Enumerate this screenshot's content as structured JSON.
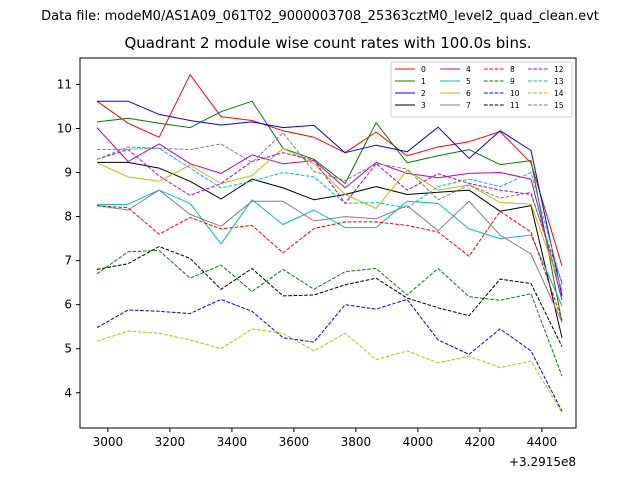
{
  "figure": {
    "suptitle": "Data file: modeM0/AS1A09_061T02_9000003708_25363cztM0_level2_quad_clean.evt",
    "title": "Quadrant 2 module wise count rates with 100.0s bins."
  },
  "chart_data": {
    "type": "line",
    "title": "Quadrant 2 module wise count rates with 100.0s bins.",
    "xlabel": "",
    "ylabel": "",
    "x_offset_label": "+3.2915e8",
    "xlim": [
      2910,
      4510
    ],
    "ylim": [
      3.2,
      11.6
    ],
    "x_ticks": [
      3000,
      3200,
      3400,
      3600,
      3800,
      4000,
      4200,
      4400
    ],
    "x_tick_labels": [
      "3000",
      "3200",
      "3400",
      "3600",
      "3800",
      "4000",
      "4200",
      "4400"
    ],
    "y_ticks": [
      4,
      5,
      6,
      7,
      8,
      9,
      10,
      11
    ],
    "y_tick_labels": [
      "4",
      "5",
      "6",
      "7",
      "8",
      "9",
      "10",
      "11"
    ],
    "legend_position": "upper right",
    "x": [
      2965,
      3065,
      3165,
      3265,
      3365,
      3465,
      3565,
      3665,
      3765,
      3865,
      3965,
      4065,
      4165,
      4265,
      4365,
      4465
    ],
    "series": [
      {
        "name": "0",
        "color": "#ff0000",
        "dash": "solid",
        "values": [
          10.62,
          10.12,
          9.8,
          11.22,
          10.27,
          10.18,
          9.95,
          9.8,
          9.45,
          9.92,
          9.38,
          9.58,
          9.7,
          9.93,
          9.22,
          6.88
        ]
      },
      {
        "name": "1",
        "color": "#008000",
        "dash": "solid",
        "values": [
          10.15,
          10.23,
          10.12,
          10.02,
          10.38,
          10.62,
          9.55,
          9.3,
          8.75,
          10.13,
          9.22,
          9.38,
          9.52,
          9.18,
          9.27,
          5.6
        ]
      },
      {
        "name": "2",
        "color": "#0000ff",
        "dash": "solid",
        "values": [
          10.62,
          10.62,
          10.32,
          10.18,
          10.08,
          10.15,
          10.02,
          10.07,
          9.45,
          9.62,
          9.47,
          10.03,
          9.32,
          9.95,
          9.5,
          6.2
        ]
      },
      {
        "name": "3",
        "color": "#000000",
        "dash": "solid",
        "values": [
          9.23,
          9.23,
          9.1,
          8.8,
          8.4,
          8.85,
          8.65,
          8.38,
          8.5,
          8.68,
          8.5,
          8.55,
          8.6,
          8.12,
          8.25,
          5.25
        ]
      },
      {
        "name": "4",
        "color": "#bf00bf",
        "dash": "solid",
        "values": [
          10.02,
          9.25,
          9.65,
          9.2,
          8.98,
          9.4,
          9.2,
          9.27,
          8.65,
          9.23,
          8.98,
          8.88,
          8.98,
          9.0,
          8.85,
          6.1
        ]
      },
      {
        "name": "5",
        "color": "#00bfbf",
        "dash": "solid",
        "values": [
          8.27,
          8.28,
          8.6,
          8.3,
          7.38,
          8.38,
          7.82,
          8.15,
          7.75,
          7.75,
          8.35,
          8.3,
          7.72,
          7.5,
          7.58,
          5.97
        ]
      },
      {
        "name": "6",
        "color": "#bfbf00",
        "dash": "solid",
        "values": [
          9.22,
          8.9,
          8.8,
          9.17,
          8.75,
          8.93,
          9.55,
          9.2,
          8.5,
          8.18,
          9.05,
          8.6,
          8.72,
          8.32,
          8.28,
          6.33
        ]
      },
      {
        "name": "7",
        "color": "#808080",
        "dash": "solid",
        "values": [
          8.25,
          8.15,
          8.6,
          8.05,
          7.78,
          8.35,
          8.35,
          7.9,
          8.0,
          7.95,
          8.25,
          7.68,
          8.35,
          7.58,
          7.15,
          5.6
        ]
      },
      {
        "name": "8",
        "color": "#ff0000",
        "dash": "dashed",
        "values": [
          8.25,
          8.2,
          7.6,
          7.98,
          7.72,
          7.8,
          7.18,
          7.73,
          7.88,
          7.88,
          7.8,
          7.65,
          7.1,
          8.12,
          7.65,
          5.65
        ]
      },
      {
        "name": "9",
        "color": "#008000",
        "dash": "dashed",
        "values": [
          6.7,
          7.2,
          7.23,
          6.6,
          6.9,
          6.3,
          6.8,
          6.35,
          6.75,
          6.82,
          6.22,
          6.82,
          6.18,
          6.1,
          6.25,
          4.38
        ]
      },
      {
        "name": "10",
        "color": "#0000ff",
        "dash": "dashed",
        "values": [
          5.48,
          5.88,
          5.85,
          5.8,
          6.12,
          5.85,
          5.25,
          5.15,
          6.0,
          5.9,
          6.12,
          5.2,
          4.87,
          5.45,
          4.95,
          3.58
        ]
      },
      {
        "name": "11",
        "color": "#000000",
        "dash": "dashed",
        "values": [
          6.8,
          6.93,
          7.32,
          7.05,
          6.35,
          6.82,
          6.2,
          6.22,
          6.45,
          6.6,
          6.15,
          5.93,
          5.75,
          6.58,
          6.48,
          5.05
        ]
      },
      {
        "name": "12",
        "color": "#bf00bf",
        "dash": "dashed",
        "values": [
          9.3,
          9.52,
          8.92,
          8.48,
          8.75,
          9.25,
          9.45,
          9.28,
          8.3,
          9.2,
          8.6,
          8.97,
          8.75,
          8.6,
          8.5,
          6.5
        ]
      },
      {
        "name": "13",
        "color": "#00bfbf",
        "dash": "dashed",
        "values": [
          9.52,
          9.53,
          9.55,
          9.1,
          8.65,
          8.8,
          9.0,
          8.9,
          8.3,
          8.32,
          8.2,
          8.68,
          8.85,
          8.68,
          9.0,
          6.45
        ]
      },
      {
        "name": "14",
        "color": "#bfbf00",
        "dash": "dashed",
        "values": [
          5.17,
          5.4,
          5.35,
          5.2,
          5.0,
          5.45,
          5.35,
          4.95,
          5.35,
          4.75,
          4.95,
          4.68,
          4.83,
          4.57,
          4.72,
          3.55
        ]
      },
      {
        "name": "15",
        "color": "#808080",
        "dash": "dashed",
        "values": [
          9.3,
          9.58,
          9.55,
          9.52,
          9.65,
          9.23,
          9.9,
          9.02,
          8.82,
          9.2,
          9.08,
          8.38,
          8.72,
          8.42,
          8.55,
          6.32
        ]
      }
    ]
  }
}
